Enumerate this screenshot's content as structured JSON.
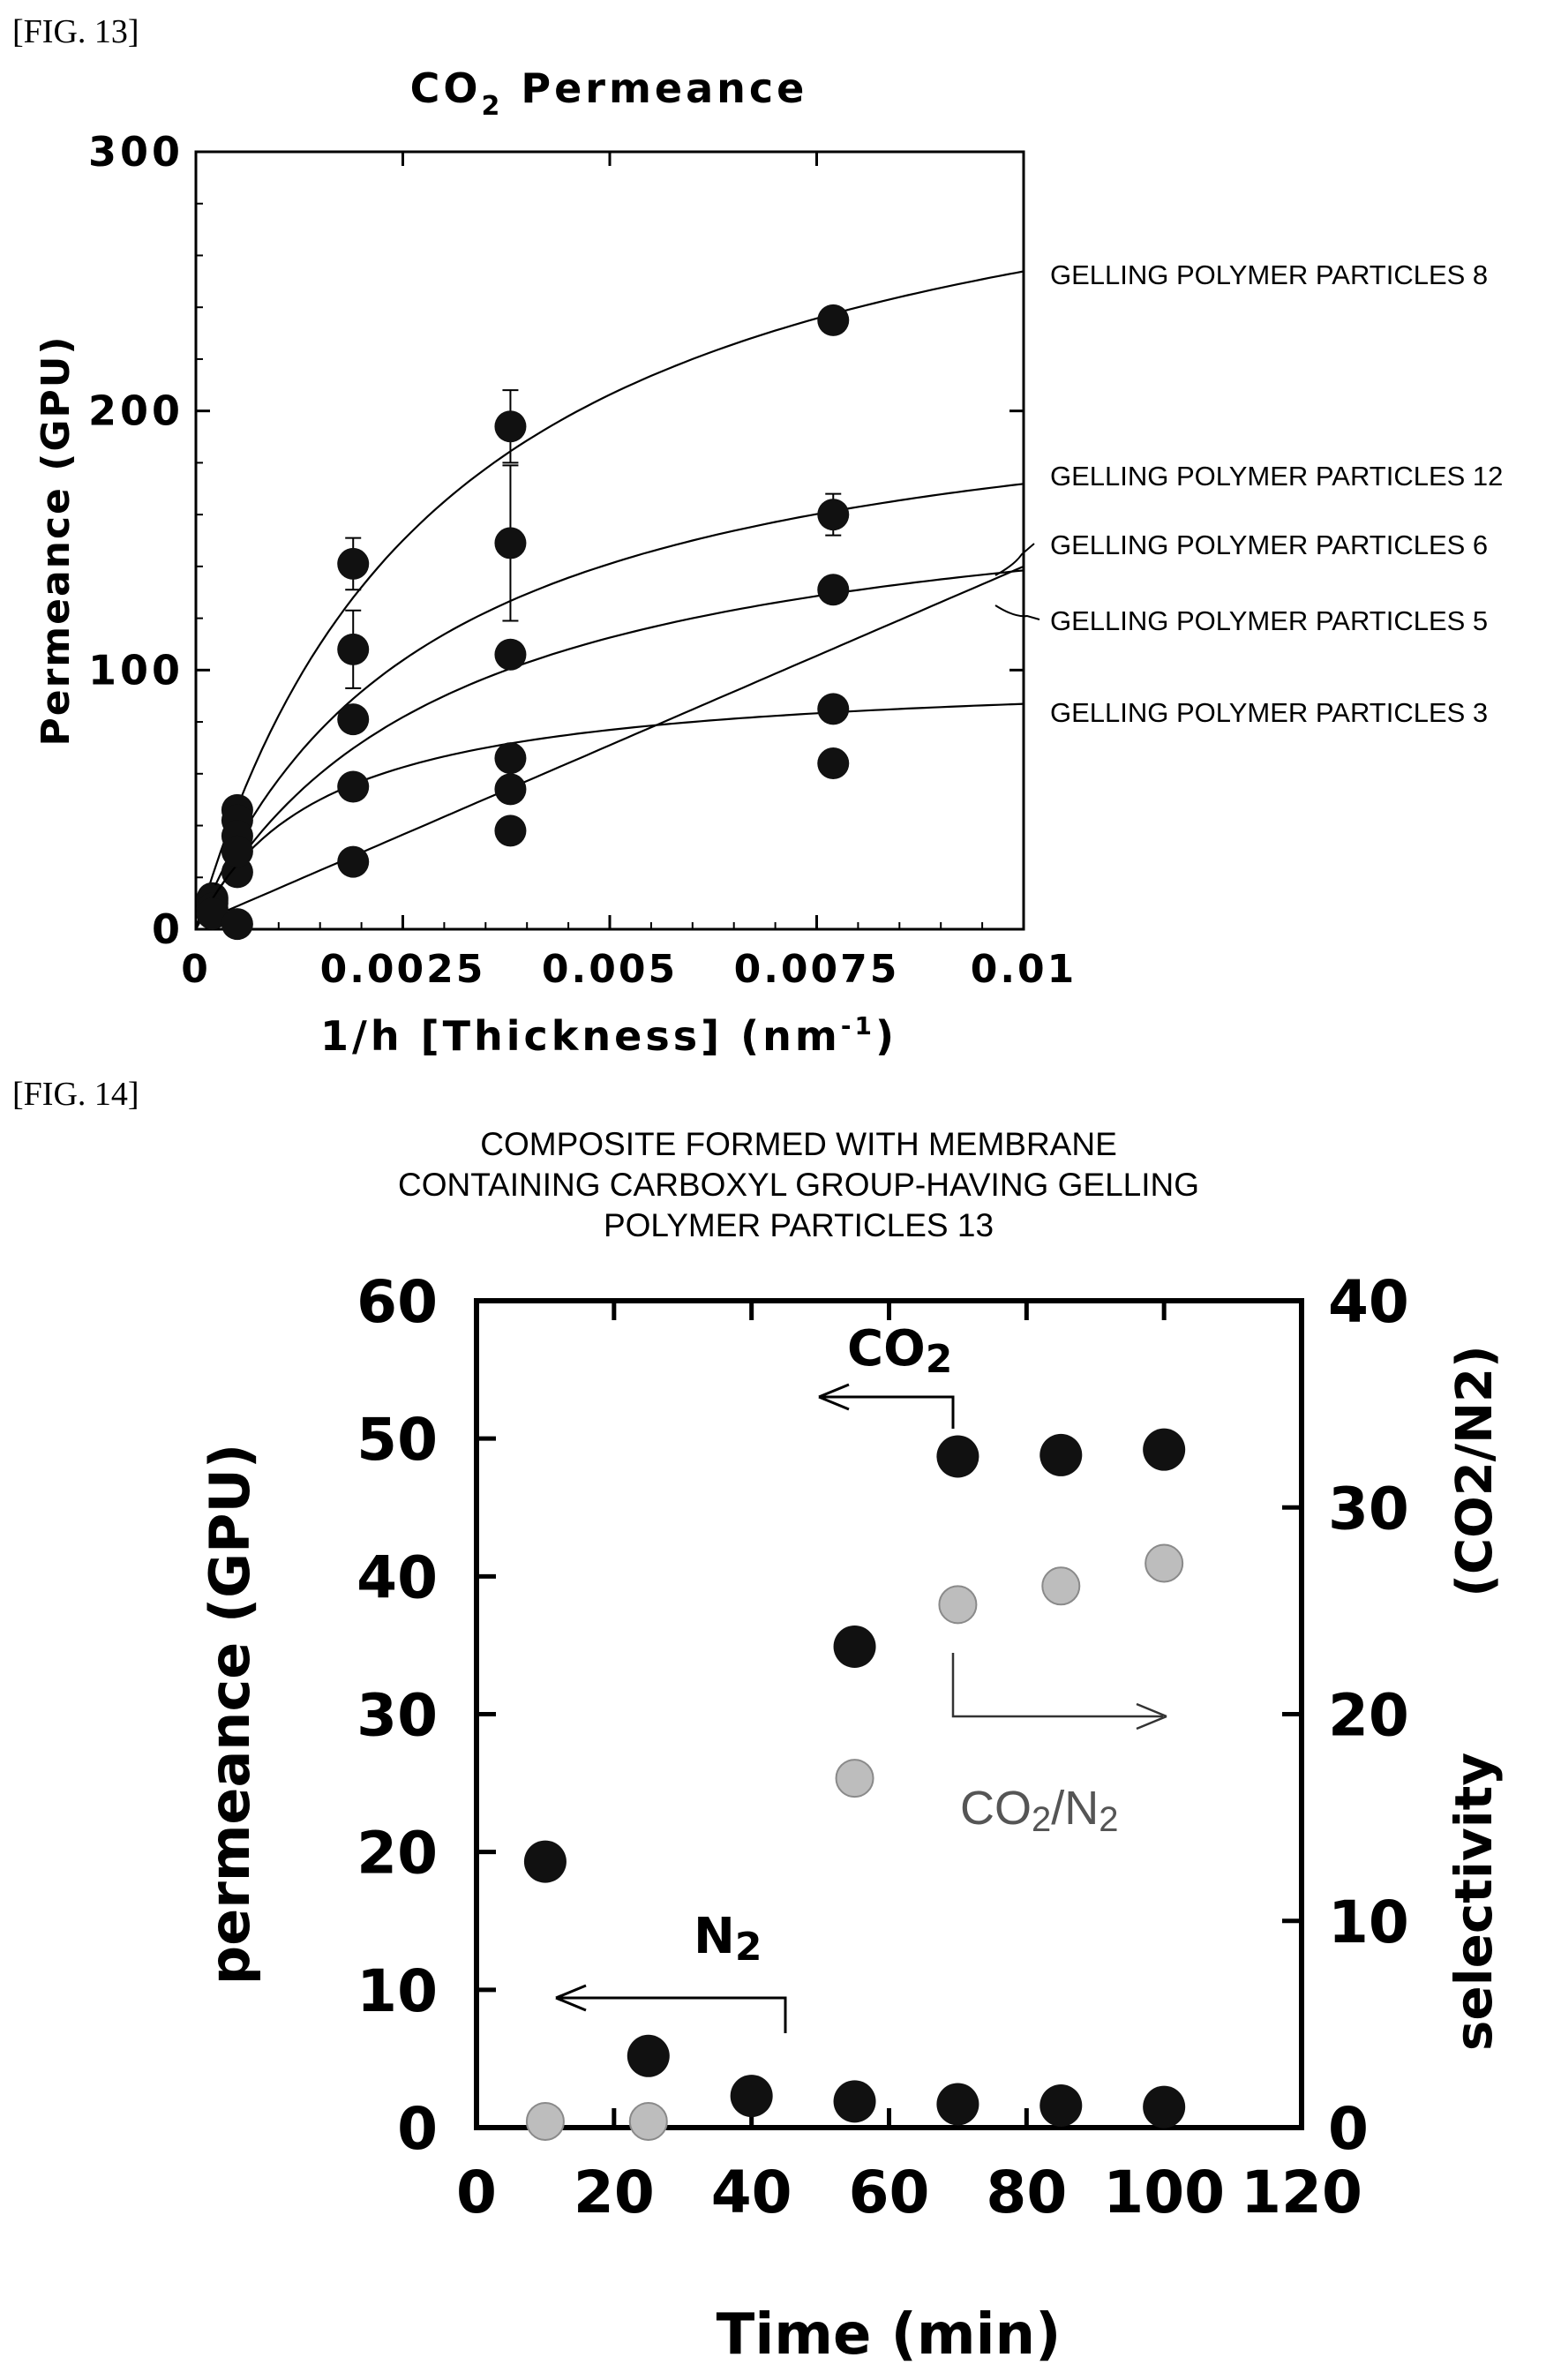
{
  "fig13_label": "[FIG. 13]",
  "fig14_label": "[FIG. 14]",
  "chart_data": [
    {
      "type": "scatter",
      "title_main": "CO",
      "title_sub": "2",
      "title_rest": " Permeance",
      "xlabel_main": "1/h [Thickness] (nm",
      "xlabel_sup": "-1",
      "xlabel_end": ")",
      "ylabel": "Permeance (GPU)",
      "xlim": [
        0,
        0.01
      ],
      "ylim": [
        0,
        300
      ],
      "xticks": [
        0,
        0.0025,
        0.005,
        0.0075,
        0.01
      ],
      "xtick_labels": [
        "0",
        "0.0025",
        "0.005",
        "0.0075",
        "0.01"
      ],
      "yticks": [
        0,
        100,
        200,
        300
      ],
      "ytick_labels": [
        "0",
        "100",
        "200",
        "300"
      ],
      "curve_model": "saturating fit curve through each series",
      "series": [
        {
          "name": "GELLING POLYMER PARTICLES 8",
          "x": [
            0.0002,
            0.0005,
            0.0019,
            0.0038,
            0.0077
          ],
          "y": [
            12,
            46,
            141,
            194,
            235
          ],
          "err": [
            0,
            0,
            10,
            14,
            0
          ],
          "fit_max": 330,
          "fit_k": 0.003
        },
        {
          "name": "GELLING POLYMER PARTICLES 12",
          "x": [
            0.0002,
            0.0005,
            0.0019,
            0.0038,
            0.0077
          ],
          "y": [
            11,
            42,
            108,
            149,
            160
          ],
          "err": [
            0,
            0,
            15,
            30,
            8
          ],
          "fit_max": 220,
          "fit_k": 0.0028
        },
        {
          "name": "GELLING POLYMER PARTICLES 6",
          "x": [
            0.0002,
            0.0005,
            0.0019,
            0.0038,
            0.0077
          ],
          "y": [
            10,
            36,
            81,
            106,
            131
          ],
          "err": [
            0,
            0,
            0,
            0,
            0
          ],
          "fit_max": 180,
          "fit_k": 0.003
        },
        {
          "name": "GELLING POLYMER PARTICLES 5",
          "x": [
            0.0002,
            0.0005,
            0.0019,
            0.0038,
            0.0077
          ],
          "y": [
            8,
            22,
            26,
            38,
            64
          ],
          "err": [
            0,
            0,
            0,
            0,
            0
          ],
          "fit_max": 700,
          "fit_k": 0.04
        },
        {
          "name": "GELLING POLYMER PARTICLES 3",
          "x": [
            0.0002,
            0.0005,
            0.0019,
            0.0038,
            0.0077
          ],
          "y": [
            6,
            2,
            55,
            54,
            85
          ],
          "err": [
            0,
            0,
            0,
            0,
            0
          ],
          "fit_max": 100,
          "fit_k": 0.0015
        }
      ],
      "extra_points": [
        {
          "x": 0.0038,
          "y": 66
        },
        {
          "x": 0.0005,
          "y": 30
        }
      ]
    },
    {
      "type": "scatter",
      "title_lines": [
        "COMPOSITE FORMED WITH MEMBRANE",
        "CONTAINING CARBOXYL GROUP-HAVING GELLING",
        "POLYMER PARTICLES 13"
      ],
      "xlabel": "Time (min)",
      "ylabel_left": "permeance  (GPU)",
      "ylabel_right_main": "selectivity",
      "ylabel_right_paren": "(CO2/N2)",
      "xlim": [
        0,
        120
      ],
      "ylim_left": [
        0,
        60
      ],
      "ylim_right": [
        0,
        40
      ],
      "xticks": [
        0,
        20,
        40,
        60,
        80,
        100,
        120
      ],
      "yticks_left": [
        0,
        10,
        20,
        30,
        40,
        50,
        60
      ],
      "yticks_right": [
        0,
        10,
        20,
        30,
        40
      ],
      "annotation_co2": {
        "main": "CO",
        "sub": "2"
      },
      "annotation_n2": {
        "main": "N",
        "sub": "2"
      },
      "annotation_sel": {
        "main1": "CO",
        "sub1": "2",
        "slash": "/N",
        "sub2": "2"
      },
      "series": [
        {
          "name": "CO2",
          "axis": "left",
          "color": "#111111",
          "x": [
            70,
            85,
            100
          ],
          "y": [
            48.7,
            48.8,
            49.2
          ],
          "x_early": [
            10,
            25,
            40,
            55
          ],
          "y_early": [
            19.3,
            5.2,
            2.3,
            34.9
          ]
        },
        {
          "name": "N2",
          "axis": "left",
          "color": "#111111",
          "x": [
            55,
            70,
            85,
            100
          ],
          "y": [
            1.9,
            1.7,
            1.6,
            1.5
          ]
        },
        {
          "name": "CO2/N2",
          "axis": "right",
          "color": "#b0b0b0",
          "x": [
            10,
            25,
            55,
            70,
            85,
            100
          ],
          "y": [
            0.3,
            0.3,
            16.9,
            25.3,
            26.2,
            27.3
          ]
        }
      ]
    }
  ]
}
